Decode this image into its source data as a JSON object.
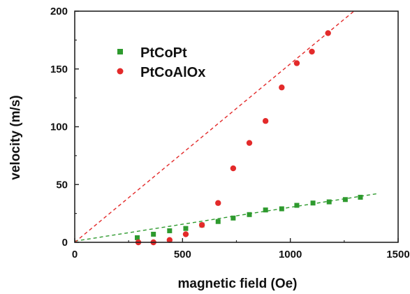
{
  "chart_data": {
    "type": "scatter",
    "xlabel": "magnetic field (Oe)",
    "ylabel": "velocity (m/s)",
    "xlim": [
      0,
      1500
    ],
    "ylim": [
      0,
      200
    ],
    "xticks": [
      0,
      500,
      1000,
      1500
    ],
    "yticks": [
      0,
      50,
      100,
      150,
      200
    ],
    "legend_position": "top-left",
    "series": [
      {
        "name": "PtCoPt",
        "marker": "square",
        "color": "#2e9a2e",
        "x": [
          290,
          365,
          440,
          515,
          590,
          665,
          735,
          810,
          885,
          960,
          1030,
          1105,
          1180,
          1255,
          1325
        ],
        "y": [
          4,
          7,
          10,
          12,
          15,
          18,
          21,
          24,
          28,
          29,
          32,
          34,
          35,
          37,
          39
        ]
      },
      {
        "name": "PtCoAlOx",
        "marker": "circle",
        "color": "#e32a2a",
        "x": [
          295,
          365,
          440,
          515,
          590,
          665,
          735,
          810,
          885,
          960,
          1030,
          1100,
          1175
        ],
        "y": [
          0,
          0,
          2,
          7,
          15,
          34,
          64,
          86,
          105,
          134,
          155,
          165,
          181
        ]
      }
    ],
    "fit_lines": [
      {
        "series": "PtCoPt",
        "color": "#2e9a2e",
        "x": [
          0,
          1400
        ],
        "y": [
          1,
          42
        ]
      },
      {
        "series": "PtCoAlOx",
        "color": "#e32a2a",
        "x": [
          0,
          1295
        ],
        "y": [
          0,
          200
        ]
      }
    ],
    "xtick_labels": [
      "0",
      "500",
      "1000",
      "1500"
    ],
    "ytick_labels": [
      "0",
      "50",
      "100",
      "150",
      "200"
    ]
  }
}
